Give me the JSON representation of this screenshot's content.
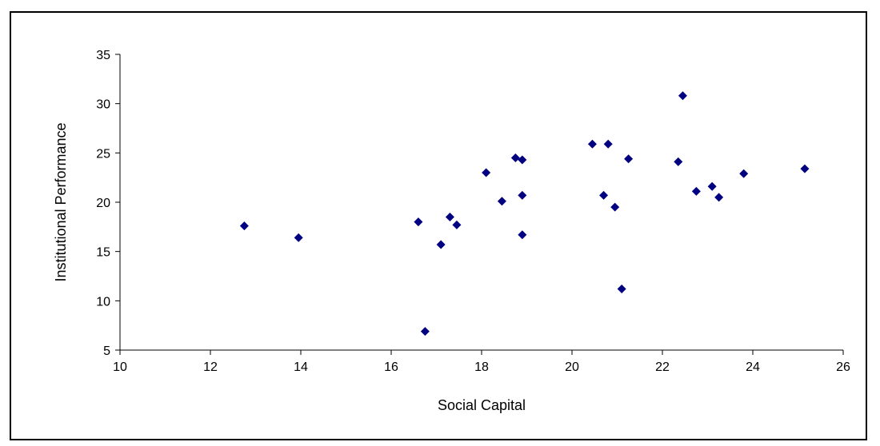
{
  "chart_data": {
    "type": "scatter",
    "title": "",
    "xlabel": "Social Capital",
    "ylabel": "Institutional Performance",
    "xlim": [
      10,
      26
    ],
    "ylim": [
      5,
      35
    ],
    "xticks": [
      10,
      12,
      14,
      16,
      18,
      20,
      22,
      24,
      26
    ],
    "yticks": [
      5,
      10,
      15,
      20,
      25,
      30,
      35
    ],
    "grid": false,
    "legend": "none",
    "marker": "diamond",
    "color": "#000080",
    "points": [
      {
        "x": 12.75,
        "y": 17.6
      },
      {
        "x": 13.95,
        "y": 16.4
      },
      {
        "x": 16.6,
        "y": 18.0
      },
      {
        "x": 16.75,
        "y": 6.9
      },
      {
        "x": 17.1,
        "y": 15.7
      },
      {
        "x": 17.3,
        "y": 18.5
      },
      {
        "x": 17.45,
        "y": 17.7
      },
      {
        "x": 18.1,
        "y": 23.0
      },
      {
        "x": 18.45,
        "y": 20.1
      },
      {
        "x": 18.75,
        "y": 24.5
      },
      {
        "x": 18.9,
        "y": 20.7
      },
      {
        "x": 18.9,
        "y": 24.3
      },
      {
        "x": 18.9,
        "y": 16.7
      },
      {
        "x": 20.45,
        "y": 25.9
      },
      {
        "x": 20.7,
        "y": 20.7
      },
      {
        "x": 20.8,
        "y": 25.9
      },
      {
        "x": 20.95,
        "y": 19.5
      },
      {
        "x": 21.1,
        "y": 11.2
      },
      {
        "x": 21.25,
        "y": 24.4
      },
      {
        "x": 22.35,
        "y": 24.1
      },
      {
        "x": 22.45,
        "y": 30.8
      },
      {
        "x": 22.75,
        "y": 21.1
      },
      {
        "x": 23.1,
        "y": 21.6
      },
      {
        "x": 23.25,
        "y": 20.5
      },
      {
        "x": 23.8,
        "y": 22.9
      },
      {
        "x": 25.15,
        "y": 23.4
      }
    ]
  }
}
